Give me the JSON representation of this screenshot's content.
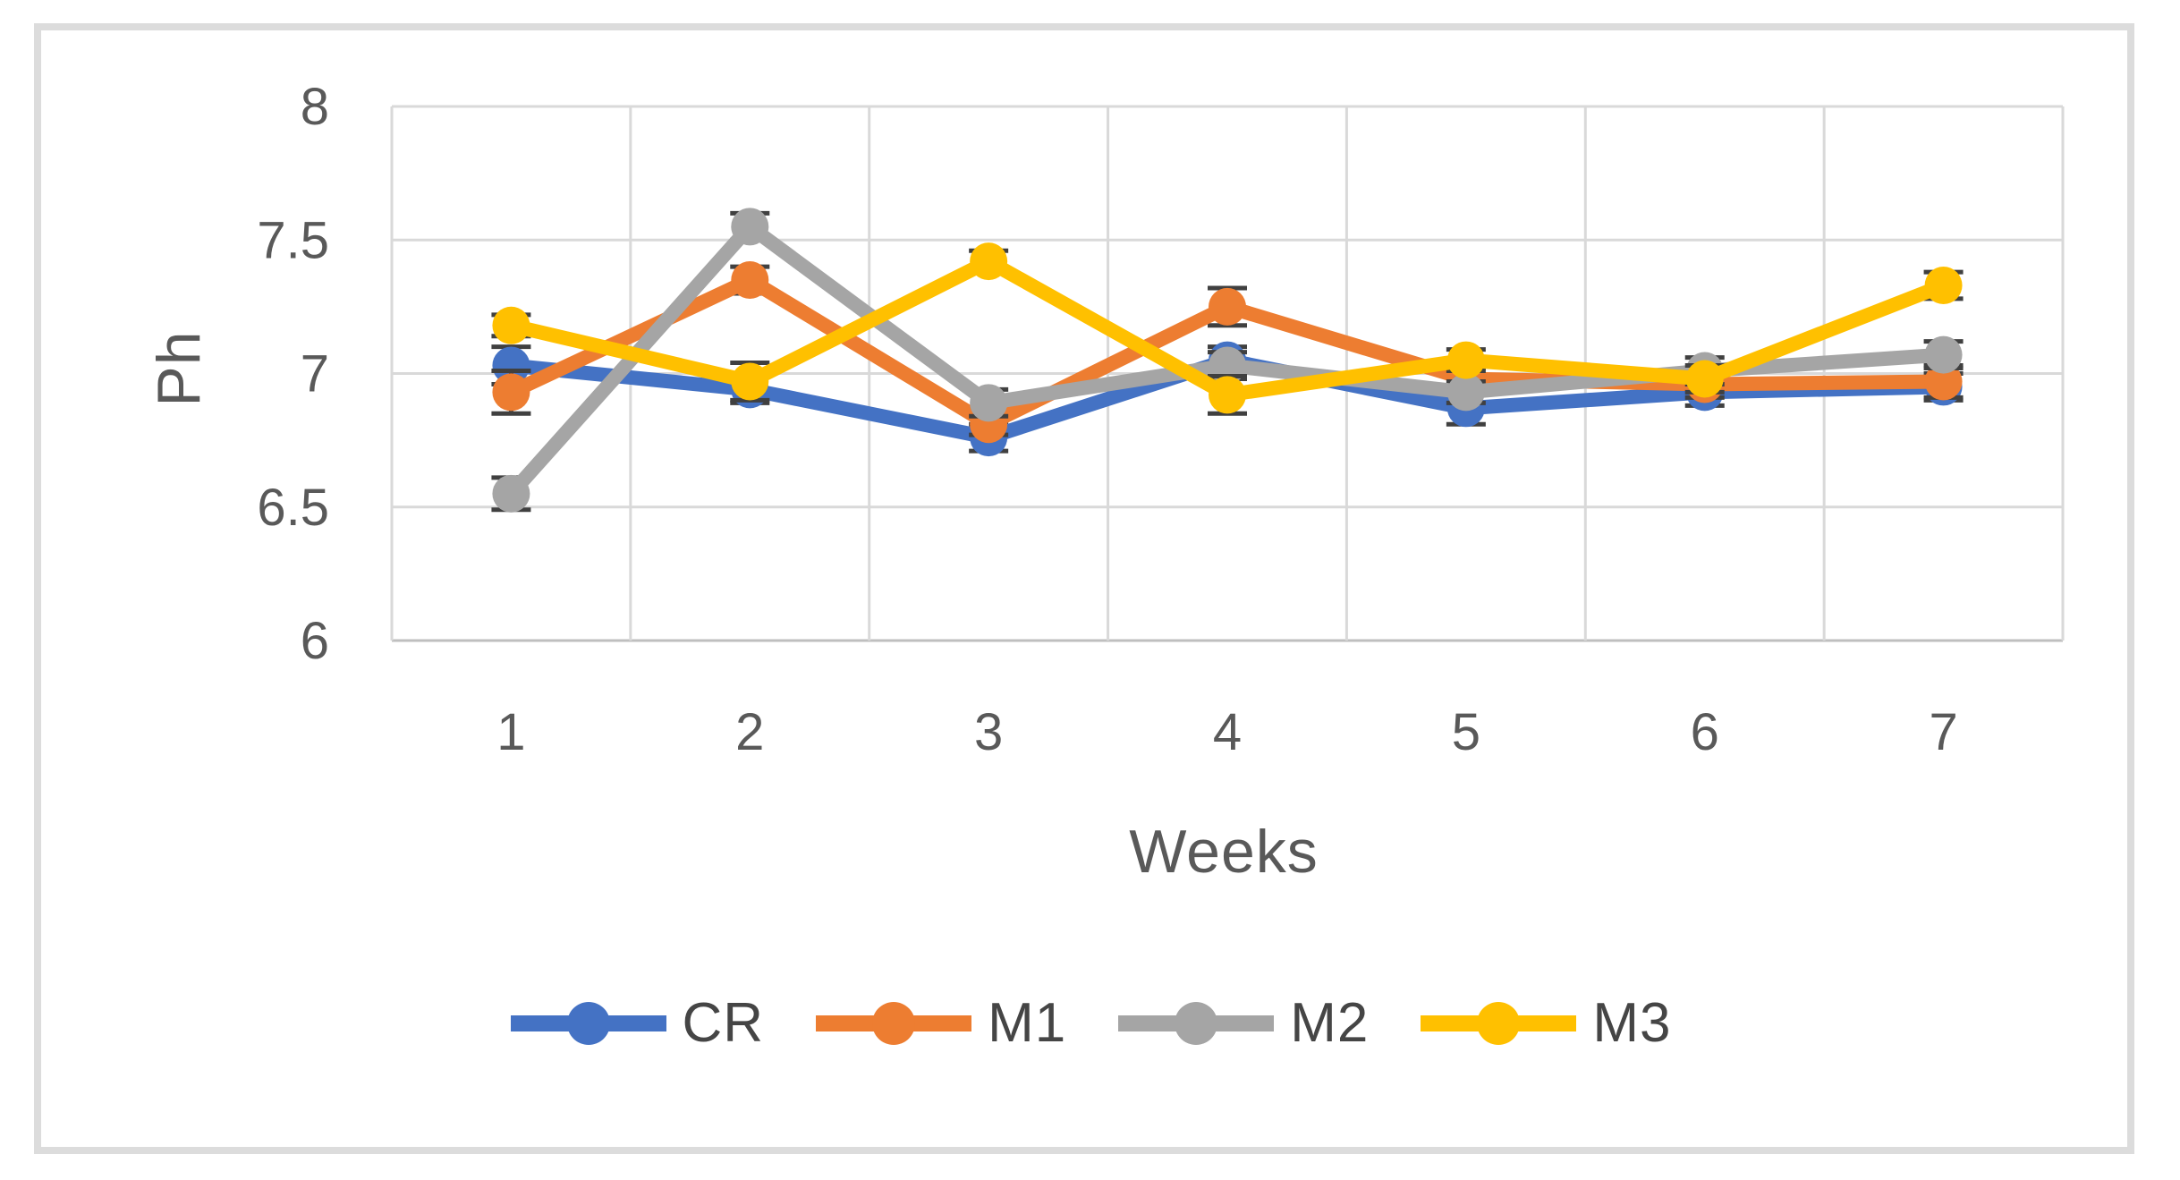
{
  "figure": {
    "background_color": "#ffffff",
    "frame_border_color": "#dcdcdc"
  },
  "chart_data": {
    "type": "line",
    "title": "",
    "xlabel": "Weeks",
    "ylabel": "Ph",
    "x": [
      1,
      2,
      3,
      4,
      5,
      6,
      7
    ],
    "x_tick_labels": [
      "1",
      "2",
      "3",
      "4",
      "5",
      "6",
      "7"
    ],
    "ylim": [
      6,
      8
    ],
    "y_ticks": [
      6,
      6.5,
      7,
      7.5,
      8
    ],
    "y_tick_labels": [
      "6",
      "6.5",
      "7",
      "7.5",
      "8"
    ],
    "grid": true,
    "error_bars": true,
    "legend_position": "bottom",
    "gridline_color": "#d9d9d9",
    "axis_line_color": "#bfbfbf",
    "tick_label_color": "#595959",
    "error_bar_color": "#404040",
    "series": [
      {
        "name": "CR",
        "color": "#4472C4",
        "values": [
          7.03,
          6.94,
          6.76,
          7.05,
          6.87,
          6.93,
          6.95
        ],
        "errors": [
          0.07,
          0.05,
          0.05,
          0.05,
          0.06,
          0.05,
          0.05
        ]
      },
      {
        "name": "M1",
        "color": "#ED7D31",
        "values": [
          6.93,
          7.35,
          6.81,
          7.25,
          6.98,
          6.96,
          6.97
        ],
        "errors": [
          0.08,
          0.05,
          0.04,
          0.07,
          0.04,
          0.05,
          0.06
        ]
      },
      {
        "name": "M2",
        "color": "#A5A5A5",
        "values": [
          6.55,
          7.55,
          6.89,
          7.03,
          6.93,
          7.01,
          7.07
        ],
        "errors": [
          0.06,
          0.05,
          0.05,
          0.05,
          0.04,
          0.05,
          0.05
        ]
      },
      {
        "name": "M3",
        "color": "#FFC000",
        "values": [
          7.18,
          6.97,
          7.42,
          6.92,
          7.05,
          6.98,
          7.33
        ],
        "errors": [
          0.04,
          0.07,
          0.04,
          0.07,
          0.04,
          0.05,
          0.05
        ]
      }
    ]
  }
}
